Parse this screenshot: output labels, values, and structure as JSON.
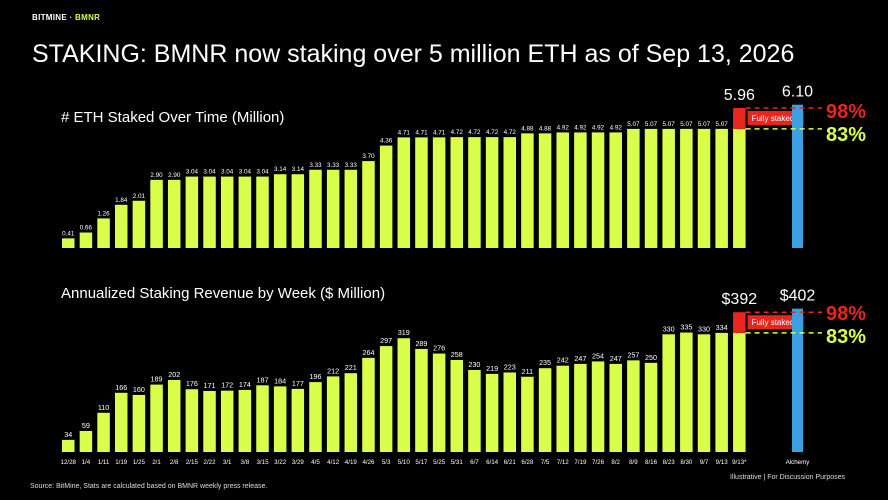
{
  "header": {
    "brand": "BITMINE",
    "ticker": "BMNR",
    "title": "STAKING: BMNR now staking over 5 million ETH as of Sep 13, 2026"
  },
  "footer": {
    "source": "Source: BitMine, Stats are calculated based on BMNR weekly press release.",
    "note": "Illustrative  |  For Discussion Purposes"
  },
  "colors": {
    "bar": "#d9ff4a",
    "alchemy": "#3aa0e0",
    "red": "#e8261e",
    "grid_yellow": "#d9ff4a"
  },
  "chart_data": [
    {
      "type": "bar",
      "title": "# ETH Staked Over Time (Million)",
      "categories": [
        "12/28",
        "1/4",
        "1/11",
        "1/19",
        "1/25",
        "2/1",
        "2/8",
        "2/15",
        "2/22",
        "3/1",
        "3/8",
        "3/15",
        "3/22",
        "3/29",
        "4/5",
        "4/12",
        "4/19",
        "4/26",
        "5/3",
        "5/10",
        "5/17",
        "5/25",
        "5/31",
        "6/7",
        "6/14",
        "6/21",
        "6/28",
        "7/5",
        "7/12",
        "7/19",
        "7/26",
        "8/2",
        "8/9",
        "8/16",
        "8/23",
        "8/30",
        "9/7",
        "9/13",
        "9/13*"
      ],
      "values": [
        0.41,
        0.66,
        1.26,
        1.84,
        2.01,
        2.9,
        2.9,
        3.04,
        3.04,
        3.04,
        3.04,
        3.04,
        3.14,
        3.14,
        3.33,
        3.33,
        3.33,
        3.7,
        4.36,
        4.71,
        4.71,
        4.71,
        4.72,
        4.72,
        4.72,
        4.72,
        4.88,
        4.88,
        4.92,
        4.92,
        4.92,
        4.92,
        5.07,
        5.07,
        5.07,
        5.07,
        5.07,
        5.07,
        5.07
      ],
      "value_labels": [
        "0.41",
        "0.66",
        "1.26",
        "1.84",
        "2.01",
        "2.90",
        "2.90",
        "3.04",
        "3.04",
        "3.04",
        "3.04",
        "3.04",
        "3.14",
        "3.14",
        "3.33",
        "3.33",
        "3.33",
        "3.70",
        "4.36",
        "4.71",
        "4.71",
        "4.71",
        "4.72",
        "4.72",
        "4.72",
        "4.72",
        "4.88",
        "4.88",
        "4.92",
        "4.92",
        "4.92",
        "4.92",
        "5.07",
        "5.07",
        "5.07",
        "5.07",
        "5.07",
        "5.07",
        ""
      ],
      "fully_staked": {
        "value": 5.96,
        "label": "5.96",
        "text": "Fully staked"
      },
      "alchemy": {
        "value": 6.1,
        "label": "6.10"
      },
      "pct_high": "98%",
      "pct_low": "83%",
      "ylim": [
        0,
        6.3
      ]
    },
    {
      "type": "bar",
      "title": "Annualized Staking Revenue by Week ($ Million)",
      "categories": [
        "12/28",
        "1/4",
        "1/11",
        "1/19",
        "1/25",
        "2/1",
        "2/8",
        "2/15",
        "2/22",
        "3/1",
        "3/8",
        "3/15",
        "3/22",
        "3/29",
        "4/5",
        "4/12",
        "4/19",
        "4/26",
        "5/3",
        "5/10",
        "5/17",
        "5/25",
        "5/31",
        "6/7",
        "6/14",
        "6/21",
        "6/28",
        "7/5",
        "7/12",
        "7/19",
        "7/26",
        "8/2",
        "8/9",
        "8/16",
        "8/23",
        "8/30",
        "9/7",
        "9/13",
        "9/13*"
      ],
      "values": [
        34,
        59,
        110,
        166,
        160,
        189,
        202,
        176,
        171,
        172,
        174,
        187,
        184,
        177,
        196,
        212,
        221,
        264,
        297,
        319,
        289,
        276,
        258,
        230,
        219,
        223,
        211,
        235,
        242,
        247,
        254,
        247,
        257,
        250,
        330,
        335,
        330,
        334,
        334
      ],
      "value_labels": [
        "34",
        "59",
        "110",
        "166",
        "160",
        "189",
        "202",
        "176",
        "171",
        "172",
        "174",
        "187",
        "184",
        "177",
        "196",
        "212",
        "221",
        "264",
        "297",
        "319",
        "289",
        "276",
        "258",
        "230",
        "219",
        "223",
        "211",
        "235",
        "242",
        "247",
        "254",
        "247",
        "257",
        "250",
        "330",
        "335",
        "330",
        "334",
        ""
      ],
      "fully_staked": {
        "value": 392,
        "label": "$392",
        "text": "Fully staked"
      },
      "alchemy": {
        "value": 402,
        "label": "$402",
        "category": "Alchemy"
      },
      "pct_high": "98%",
      "pct_low": "83%",
      "ylim": [
        0,
        415
      ]
    }
  ]
}
